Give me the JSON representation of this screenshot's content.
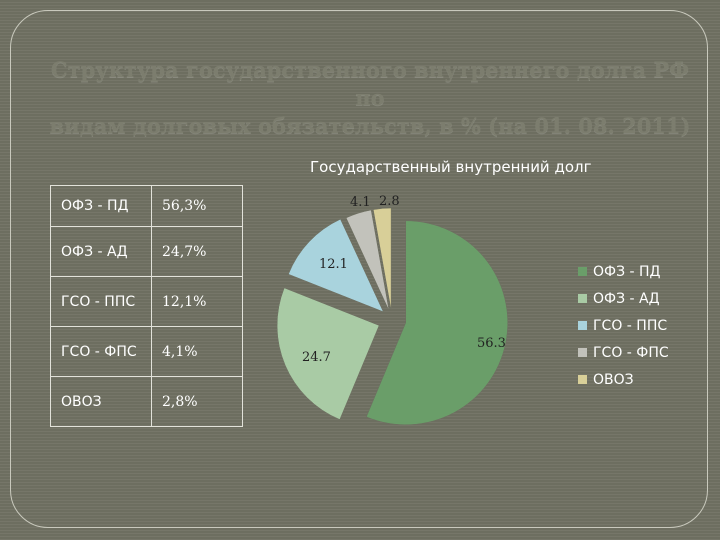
{
  "slide": {
    "title_line1": "Структура государственного внутреннего долга РФ по",
    "title_line2": "видам долговых обязательств, в % (на 01. 08. 2011)"
  },
  "table": {
    "rows": [
      {
        "label": "ОФЗ - ПД",
        "value": "56,3%"
      },
      {
        "label": "ОФЗ - АД",
        "value": "24,7%"
      },
      {
        "label": "ГСО - ППС",
        "value": "12,1%"
      },
      {
        "label": "ГСО - ФПС",
        "value": "4,1%"
      },
      {
        "label": "ОВОЗ",
        "value": "2,8%"
      }
    ]
  },
  "chart_data": {
    "type": "pie",
    "title": "Государственный внутренний долг",
    "categories": [
      "ОФЗ - ПД",
      "ОФЗ - АД",
      "ГСО - ППС",
      "ГСО - ФПС",
      "ОВОЗ"
    ],
    "values": [
      56.3,
      24.7,
      12.1,
      4.1,
      2.8
    ],
    "data_labels": [
      "56.3",
      "24.7",
      "12.1",
      "4.1",
      "2.8"
    ],
    "colors": [
      "#6a9e69",
      "#a9cba5",
      "#a9d3dd",
      "#c2c2bb",
      "#d8cf98"
    ],
    "legend_position": "right"
  }
}
